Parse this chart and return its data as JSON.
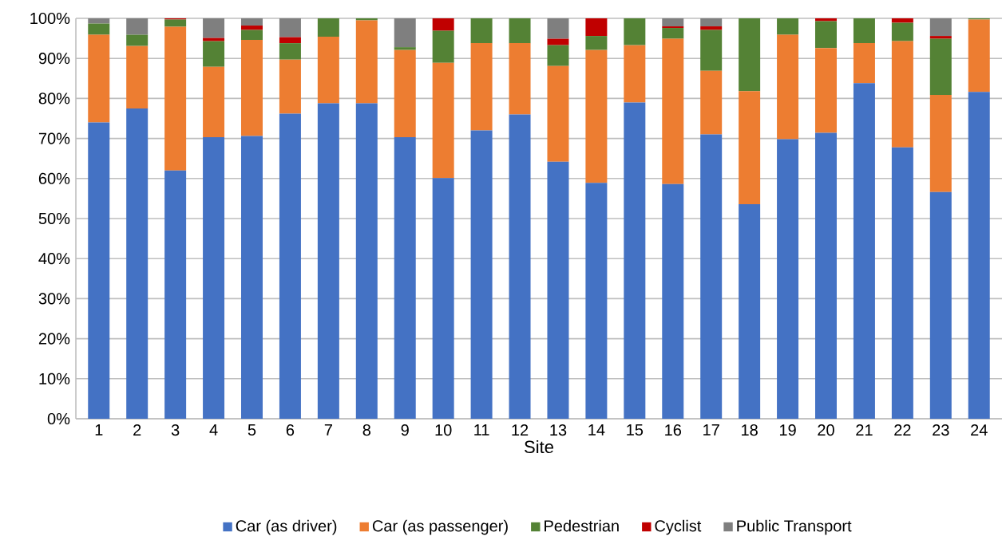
{
  "chart_data": {
    "type": "bar",
    "stacked": true,
    "xlabel": "Site",
    "grid": "y",
    "legend": "bottom",
    "categories": [
      "1",
      "2",
      "3",
      "4",
      "5",
      "6",
      "7",
      "8",
      "9",
      "10",
      "11",
      "12",
      "13",
      "14",
      "15",
      "16",
      "17",
      "18",
      "19",
      "20",
      "21",
      "22",
      "23",
      "24"
    ],
    "ylim": [
      0,
      100
    ],
    "yticks": [
      {
        "value": 0,
        "label": "0%"
      },
      {
        "value": 10,
        "label": "10%"
      },
      {
        "value": 20,
        "label": "20%"
      },
      {
        "value": 30,
        "label": "30%"
      },
      {
        "value": 40,
        "label": "40%"
      },
      {
        "value": 50,
        "label": "50%"
      },
      {
        "value": 60,
        "label": "60%"
      },
      {
        "value": 70,
        "label": "70%"
      },
      {
        "value": 80,
        "label": "80%"
      },
      {
        "value": 90,
        "label": "90%"
      },
      {
        "value": 100,
        "label": "100%"
      }
    ],
    "series": [
      {
        "name": "Car (as driver)",
        "color": "#4472c4",
        "values": [
          74,
          77.5,
          62,
          70.3,
          70.6,
          76.2,
          78.8,
          78.8,
          70.3,
          60.1,
          72,
          76,
          64.2,
          58.9,
          79,
          58.6,
          71,
          53.6,
          69.8,
          71.4,
          83.8,
          67.8,
          56.6,
          81.6
        ]
      },
      {
        "name": "Car (as passenger)",
        "color": "#ed7d31",
        "values": [
          21.9,
          15.6,
          35.9,
          17.6,
          24,
          13.5,
          16.6,
          20.7,
          21.8,
          28.8,
          21.8,
          17.8,
          23.9,
          33.2,
          14.3,
          36.3,
          15.9,
          28.2,
          26.1,
          21.2,
          10,
          26.5,
          24.3,
          18.1
        ]
      },
      {
        "name": "Pedestrian",
        "color": "#548235",
        "values": [
          2.8,
          2.8,
          1.8,
          6.4,
          2.5,
          4.1,
          4.6,
          0.5,
          0.7,
          8,
          6.2,
          6.2,
          5.2,
          3.5,
          6.7,
          2.7,
          10.2,
          18.2,
          4.1,
          6.7,
          6.2,
          4.6,
          14,
          0.3
        ]
      },
      {
        "name": "Cyclist",
        "color": "#c00000",
        "values": [
          0,
          0,
          0.3,
          0.8,
          1.1,
          1.5,
          0,
          0,
          0,
          3.1,
          0,
          0,
          1.6,
          4.4,
          0,
          0.4,
          0.9,
          0,
          0,
          0.7,
          0,
          1.1,
          0.7,
          0
        ]
      },
      {
        "name": "Public Transport",
        "color": "#7f7f7f",
        "values": [
          1.3,
          4.1,
          0,
          4.9,
          1.8,
          4.7,
          0,
          0,
          7.2,
          0,
          0,
          0,
          5.1,
          0,
          0,
          2,
          2,
          0,
          0,
          0,
          0,
          0,
          4.4,
          0
        ]
      }
    ]
  }
}
